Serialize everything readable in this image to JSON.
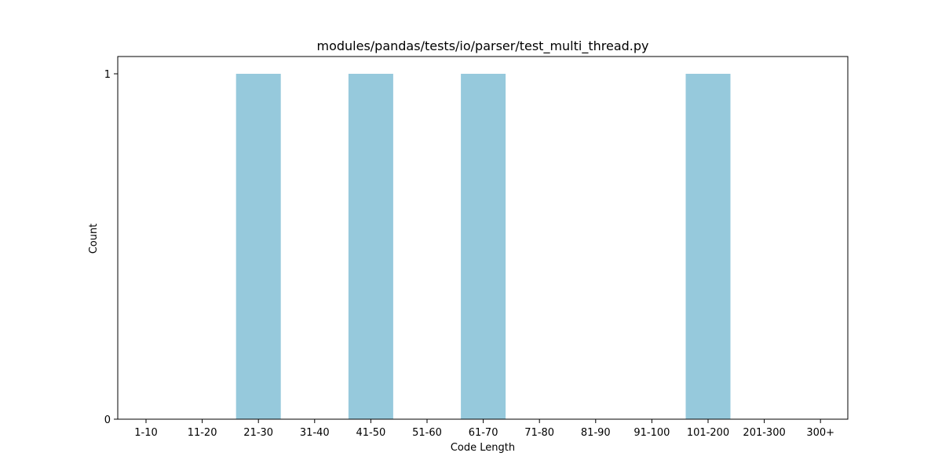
{
  "chart_data": {
    "type": "bar",
    "title": "modules/pandas/tests/io/parser/test_multi_thread.py",
    "xlabel": "Code Length",
    "ylabel": "Count",
    "categories": [
      "1-10",
      "11-20",
      "21-30",
      "31-40",
      "41-50",
      "51-60",
      "61-70",
      "71-80",
      "81-90",
      "91-100",
      "101-200",
      "201-300",
      "300+"
    ],
    "values": [
      0,
      0,
      1,
      0,
      1,
      0,
      1,
      0,
      0,
      0,
      1,
      0,
      0
    ],
    "yticks": [
      0,
      1
    ],
    "ylim": [
      0,
      1.05
    ],
    "grid": false,
    "bar_color": "#96c9dc"
  }
}
